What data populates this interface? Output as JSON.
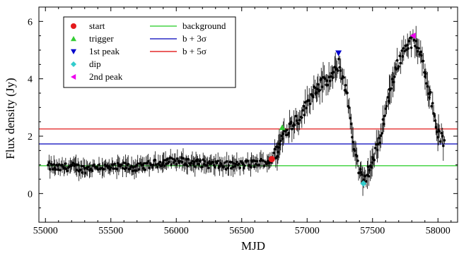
{
  "chart_data": {
    "type": "scatter",
    "title": "",
    "xlabel": "MJD",
    "ylabel": "Flux density (Jy)",
    "xlim": [
      54950,
      58150
    ],
    "ylim": [
      -1.0,
      6.5
    ],
    "xticks": [
      55000,
      55500,
      56000,
      56500,
      57000,
      57500,
      58000
    ],
    "xtick_labels": [
      "55000",
      "55500",
      "56000",
      "56500",
      "57000",
      "57500",
      "58000"
    ],
    "yticks": [
      0,
      2,
      4,
      6
    ],
    "ytick_labels": [
      "0",
      "2",
      "4",
      "6"
    ],
    "grid": false,
    "legend_position": "top-left",
    "lightcurve_shape": [
      [
        55020,
        0.95
      ],
      [
        55100,
        0.88
      ],
      [
        55200,
        0.95
      ],
      [
        55300,
        0.85
      ],
      [
        55400,
        0.95
      ],
      [
        55500,
        0.88
      ],
      [
        55600,
        0.95
      ],
      [
        55700,
        0.9
      ],
      [
        55800,
        1.0
      ],
      [
        55900,
        1.1
      ],
      [
        56000,
        1.15
      ],
      [
        56100,
        1.08
      ],
      [
        56200,
        1.05
      ],
      [
        56300,
        1.0
      ],
      [
        56400,
        0.98
      ],
      [
        56500,
        1.0
      ],
      [
        56600,
        1.05
      ],
      [
        56700,
        1.12
      ],
      [
        56730,
        1.2
      ],
      [
        56780,
        1.55
      ],
      [
        56820,
        2.1
      ],
      [
        56860,
        2.3
      ],
      [
        56900,
        2.5
      ],
      [
        56950,
        2.7
      ],
      [
        57000,
        3.1
      ],
      [
        57050,
        3.6
      ],
      [
        57100,
        3.8
      ],
      [
        57150,
        3.9
      ],
      [
        57200,
        4.1
      ],
      [
        57240,
        4.5
      ],
      [
        57280,
        4.0
      ],
      [
        57320,
        3.0
      ],
      [
        57360,
        1.6
      ],
      [
        57400,
        0.75
      ],
      [
        57430,
        0.35
      ],
      [
        57460,
        0.7
      ],
      [
        57500,
        1.1
      ],
      [
        57550,
        1.8
      ],
      [
        57600,
        2.9
      ],
      [
        57650,
        3.9
      ],
      [
        57700,
        4.6
      ],
      [
        57750,
        5.1
      ],
      [
        57790,
        5.3
      ],
      [
        57820,
        5.3
      ],
      [
        57850,
        5.0
      ],
      [
        57900,
        4.3
      ],
      [
        57950,
        3.2
      ],
      [
        58000,
        2.1
      ],
      [
        58050,
        1.75
      ]
    ],
    "event_markers": [
      {
        "name": "start",
        "x": 56730,
        "y": 1.2,
        "color": "#e41a1c",
        "marker": "circle"
      },
      {
        "name": "trigger",
        "x": 56810,
        "y": 2.3,
        "color": "#33cc33",
        "marker": "triangle-up"
      },
      {
        "name": "1st peak",
        "x": 57240,
        "y": 4.9,
        "color": "#0000cc",
        "marker": "triangle-down"
      },
      {
        "name": "dip",
        "x": 57430,
        "y": 0.35,
        "color": "#33cccc",
        "marker": "diamond"
      },
      {
        "name": "2nd peak",
        "x": 57810,
        "y": 5.5,
        "color": "#ee00ee",
        "marker": "triangle-left"
      }
    ],
    "reference_lines": [
      {
        "name": "background",
        "y": 0.97,
        "color": "#22cc22"
      },
      {
        "name": "b + 3σ",
        "y": 1.73,
        "color": "#0000bb"
      },
      {
        "name": "b + 5σ",
        "y": 2.25,
        "color": "#dd0000"
      }
    ],
    "data_color": "#000000"
  }
}
